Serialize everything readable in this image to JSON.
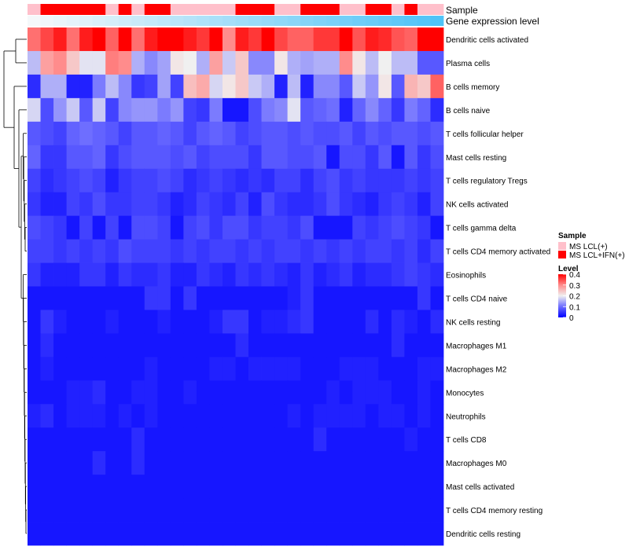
{
  "chart_data": {
    "type": "heatmap",
    "annotation_tracks": [
      "Sample",
      "Gene expression level"
    ],
    "sample_groups": [
      "LCL",
      "IFN",
      "IFN",
      "IFN",
      "IFN",
      "IFN",
      "LCL",
      "IFN",
      "LCL",
      "IFN",
      "IFN",
      "LCL",
      "LCL",
      "LCL",
      "LCL",
      "LCL",
      "IFN",
      "IFN",
      "IFN",
      "LCL",
      "LCL",
      "IFN",
      "IFN",
      "IFN",
      "LCL",
      "LCL",
      "IFN",
      "IFN",
      "LCL",
      "IFN",
      "LCL",
      "LCL"
    ],
    "expression_level": [
      0,
      0.032,
      0.065,
      0.097,
      0.129,
      0.161,
      0.194,
      0.226,
      0.258,
      0.29,
      0.323,
      0.355,
      0.387,
      0.419,
      0.452,
      0.484,
      0.516,
      0.548,
      0.581,
      0.613,
      0.645,
      0.677,
      0.71,
      0.742,
      0.774,
      0.806,
      0.839,
      0.871,
      0.903,
      0.935,
      0.968,
      1
    ],
    "rows": [
      "Dendritic cells activated",
      "Plasma cells",
      "B cells memory",
      "B cells naive",
      "T cells follicular helper",
      "Mast cells resting",
      "T cells regulatory  Tregs",
      "NK cells activated",
      "T cells gamma delta",
      "T cells CD4 memory activated",
      "Eosinophils",
      "T cells CD4 naive",
      "NK cells resting",
      "Macrophages M1",
      "Macrophages M2",
      "Monocytes",
      "Neutrophils",
      "T cells CD8",
      "Macrophages M0",
      "Mast cells activated",
      "T cells CD4 memory resting",
      "Dendritic cells resting"
    ],
    "values": [
      [
        0.32,
        0.35,
        0.38,
        0.32,
        0.38,
        0.4,
        0.33,
        0.4,
        0.32,
        0.38,
        0.4,
        0.4,
        0.38,
        0.36,
        0.4,
        0.3,
        0.38,
        0.36,
        0.4,
        0.35,
        0.33,
        0.33,
        0.36,
        0.36,
        0.4,
        0.34,
        0.38,
        0.37,
        0.34,
        0.33,
        0.4,
        0.4
      ],
      [
        0.16,
        0.28,
        0.3,
        0.24,
        0.19,
        0.19,
        0.31,
        0.3,
        0.15,
        0.12,
        0.14,
        0.21,
        0.2,
        0.15,
        0.28,
        0.17,
        0.24,
        0.12,
        0.12,
        0.21,
        0.15,
        0.14,
        0.15,
        0.15,
        0.3,
        0.21,
        0.16,
        0.2,
        0.16,
        0.16,
        0.08,
        0.08
      ],
      [
        0.04,
        0.15,
        0.15,
        0.03,
        0.03,
        0.11,
        0.16,
        0.12,
        0.05,
        0.06,
        0.14,
        0.06,
        0.25,
        0.27,
        0.18,
        0.21,
        0.24,
        0.17,
        0.15,
        0.03,
        0.16,
        0.03,
        0.12,
        0.12,
        0.08,
        0.17,
        0.13,
        0.21,
        0.08,
        0.26,
        0.24,
        0.33
      ],
      [
        0.18,
        0.07,
        0.13,
        0.17,
        0.08,
        0.17,
        0.06,
        0.12,
        0.13,
        0.13,
        0.11,
        0.13,
        0.06,
        0.05,
        0.11,
        0.02,
        0.02,
        0.07,
        0.11,
        0.12,
        0.19,
        0.08,
        0.09,
        0.1,
        0.03,
        0.09,
        0.12,
        0.09,
        0.05,
        0.11,
        0.09,
        0.04
      ],
      [
        0.08,
        0.07,
        0.06,
        0.09,
        0.1,
        0.09,
        0.08,
        0.06,
        0.08,
        0.08,
        0.09,
        0.08,
        0.06,
        0.08,
        0.09,
        0.08,
        0.06,
        0.07,
        0.08,
        0.08,
        0.07,
        0.08,
        0.07,
        0.07,
        0.08,
        0.06,
        0.08,
        0.07,
        0.08,
        0.08,
        0.07,
        0.08
      ],
      [
        0.09,
        0.05,
        0.05,
        0.08,
        0.08,
        0.09,
        0.05,
        0.07,
        0.08,
        0.08,
        0.08,
        0.07,
        0.08,
        0.06,
        0.07,
        0.07,
        0.07,
        0.05,
        0.08,
        0.08,
        0.07,
        0.07,
        0.08,
        0.02,
        0.07,
        0.07,
        0.05,
        0.08,
        0.02,
        0.08,
        0.05,
        0.07
      ],
      [
        0.06,
        0.04,
        0.05,
        0.06,
        0.07,
        0.06,
        0.03,
        0.05,
        0.06,
        0.06,
        0.07,
        0.06,
        0.04,
        0.05,
        0.06,
        0.05,
        0.04,
        0.05,
        0.04,
        0.06,
        0.06,
        0.04,
        0.06,
        0.07,
        0.05,
        0.06,
        0.05,
        0.05,
        0.05,
        0.06,
        0.05,
        0.06
      ],
      [
        0.05,
        0.03,
        0.03,
        0.06,
        0.05,
        0.07,
        0.05,
        0.05,
        0.06,
        0.06,
        0.05,
        0.03,
        0.04,
        0.06,
        0.05,
        0.04,
        0.06,
        0.03,
        0.07,
        0.05,
        0.04,
        0.04,
        0.05,
        0.07,
        0.05,
        0.04,
        0.03,
        0.05,
        0.06,
        0.05,
        0.03,
        0.06
      ],
      [
        0.07,
        0.06,
        0.05,
        0.02,
        0.06,
        0.02,
        0.06,
        0.02,
        0.07,
        0.07,
        0.06,
        0.02,
        0.06,
        0.07,
        0.05,
        0.07,
        0.07,
        0.05,
        0.06,
        0.06,
        0.05,
        0.07,
        0.02,
        0.02,
        0.02,
        0.06,
        0.05,
        0.06,
        0.07,
        0.06,
        0.05,
        0.02
      ],
      [
        0.06,
        0.06,
        0.05,
        0.06,
        0.05,
        0.06,
        0.05,
        0.07,
        0.06,
        0.06,
        0.06,
        0.05,
        0.06,
        0.05,
        0.06,
        0.06,
        0.05,
        0.06,
        0.05,
        0.06,
        0.06,
        0.05,
        0.06,
        0.05,
        0.06,
        0.05,
        0.06,
        0.06,
        0.05,
        0.06,
        0.04,
        0.06
      ],
      [
        0.05,
        0.03,
        0.03,
        0.03,
        0.05,
        0.05,
        0.03,
        0.05,
        0.04,
        0.04,
        0.05,
        0.03,
        0.03,
        0.05,
        0.04,
        0.03,
        0.05,
        0.04,
        0.05,
        0.04,
        0.03,
        0.05,
        0.03,
        0.04,
        0.05,
        0.03,
        0.04,
        0.04,
        0.05,
        0.06,
        0.05,
        0.04
      ],
      [
        0.02,
        0.02,
        0.02,
        0.02,
        0.02,
        0.02,
        0.02,
        0.02,
        0.02,
        0.05,
        0.05,
        0.02,
        0.05,
        0.02,
        0.02,
        0.02,
        0.02,
        0.02,
        0.02,
        0.02,
        0.03,
        0.05,
        0.02,
        0.02,
        0.02,
        0.02,
        0.02,
        0.02,
        0.02,
        0.02,
        0.05,
        0.02
      ],
      [
        0.02,
        0.05,
        0.03,
        0.02,
        0.02,
        0.02,
        0.03,
        0.02,
        0.02,
        0.02,
        0.03,
        0.02,
        0.02,
        0.02,
        0.03,
        0.05,
        0.05,
        0.02,
        0.03,
        0.03,
        0.04,
        0.05,
        0.02,
        0.02,
        0.02,
        0.02,
        0.04,
        0.02,
        0.04,
        0.03,
        0.02,
        0.04
      ],
      [
        0.02,
        0.04,
        0.02,
        0.02,
        0.02,
        0.02,
        0.02,
        0.02,
        0.02,
        0.02,
        0.02,
        0.02,
        0.02,
        0.02,
        0.02,
        0.02,
        0.04,
        0.02,
        0.02,
        0.02,
        0.02,
        0.02,
        0.02,
        0.02,
        0.02,
        0.02,
        0.02,
        0.02,
        0.04,
        0.02,
        0.02,
        0.02
      ],
      [
        0.02,
        0.03,
        0.02,
        0.02,
        0.02,
        0.02,
        0.02,
        0.02,
        0.02,
        0.03,
        0.02,
        0.02,
        0.02,
        0.02,
        0.03,
        0.03,
        0.02,
        0.03,
        0.03,
        0.03,
        0.03,
        0.02,
        0.02,
        0.02,
        0.03,
        0.03,
        0.03,
        0.02,
        0.02,
        0.02,
        0.03,
        0.03
      ],
      [
        0.02,
        0.02,
        0.02,
        0.03,
        0.03,
        0.04,
        0.02,
        0.02,
        0.03,
        0.03,
        0.02,
        0.02,
        0.03,
        0.02,
        0.02,
        0.02,
        0.02,
        0.02,
        0.02,
        0.02,
        0.02,
        0.02,
        0.02,
        0.03,
        0.02,
        0.03,
        0.03,
        0.03,
        0.02,
        0.02,
        0.03,
        0.02
      ],
      [
        0.03,
        0.04,
        0.02,
        0.03,
        0.03,
        0.03,
        0.02,
        0.03,
        0.02,
        0.03,
        0.02,
        0.02,
        0.02,
        0.02,
        0.02,
        0.02,
        0.02,
        0.02,
        0.02,
        0.02,
        0.03,
        0.02,
        0.03,
        0.03,
        0.03,
        0.03,
        0.02,
        0.03,
        0.03,
        0.02,
        0.03,
        0.02
      ],
      [
        0.02,
        0.02,
        0.02,
        0.02,
        0.02,
        0.02,
        0.02,
        0.02,
        0.04,
        0.02,
        0.02,
        0.02,
        0.02,
        0.02,
        0.02,
        0.02,
        0.02,
        0.02,
        0.02,
        0.02,
        0.02,
        0.02,
        0.04,
        0.02,
        0.02,
        0.02,
        0.02,
        0.02,
        0.02,
        0.03,
        0.02,
        0.02
      ],
      [
        0.02,
        0.02,
        0.02,
        0.02,
        0.02,
        0.04,
        0.02,
        0.02,
        0.04,
        0.02,
        0.02,
        0.02,
        0.02,
        0.02,
        0.02,
        0.02,
        0.02,
        0.02,
        0.02,
        0.02,
        0.02,
        0.02,
        0.02,
        0.02,
        0.02,
        0.02,
        0.02,
        0.02,
        0.02,
        0.02,
        0.02,
        0.02
      ],
      [
        0.02,
        0.02,
        0.02,
        0.02,
        0.02,
        0.02,
        0.02,
        0.02,
        0.02,
        0.02,
        0.02,
        0.02,
        0.02,
        0.02,
        0.02,
        0.02,
        0.02,
        0.02,
        0.02,
        0.02,
        0.02,
        0.02,
        0.02,
        0.02,
        0.02,
        0.02,
        0.02,
        0.02,
        0.02,
        0.02,
        0.02,
        0.02
      ],
      [
        0.02,
        0.02,
        0.02,
        0.02,
        0.02,
        0.02,
        0.02,
        0.02,
        0.02,
        0.02,
        0.02,
        0.02,
        0.02,
        0.02,
        0.02,
        0.02,
        0.02,
        0.02,
        0.02,
        0.02,
        0.02,
        0.02,
        0.02,
        0.02,
        0.02,
        0.02,
        0.02,
        0.02,
        0.02,
        0.02,
        0.02,
        0.02
      ],
      [
        0.02,
        0.02,
        0.02,
        0.02,
        0.02,
        0.02,
        0.02,
        0.02,
        0.02,
        0.02,
        0.02,
        0.02,
        0.02,
        0.02,
        0.02,
        0.02,
        0.02,
        0.02,
        0.02,
        0.02,
        0.02,
        0.02,
        0.02,
        0.02,
        0.02,
        0.02,
        0.02,
        0.02,
        0.02,
        0.02,
        0.02,
        0.02
      ]
    ],
    "color_scale": {
      "stops": [
        0,
        0.1,
        0.2,
        0.3,
        0.4
      ],
      "colors": [
        "#0000ff",
        "#6e6eff",
        "#f0f0f0",
        "#ff8c8c",
        "#ff0000"
      ]
    },
    "sample_colors": {
      "LCL": "#ffc0cb",
      "IFN": "#ff0000"
    },
    "expression_colors": [
      "#f5f8fa",
      "#4fc3f7"
    ]
  },
  "legend": {
    "sample_title": "Sample",
    "sample_items": [
      {
        "label": "MS LCL(+)",
        "key": "LCL"
      },
      {
        "label": "MS LCL+IFN(+)",
        "key": "IFN"
      }
    ],
    "level_title": "Level",
    "level_ticks": [
      "0.4",
      "0.3",
      "0.2",
      "0.1",
      "0"
    ]
  },
  "track_labels": {
    "sample": "Sample",
    "expression": "Gene expression level"
  }
}
